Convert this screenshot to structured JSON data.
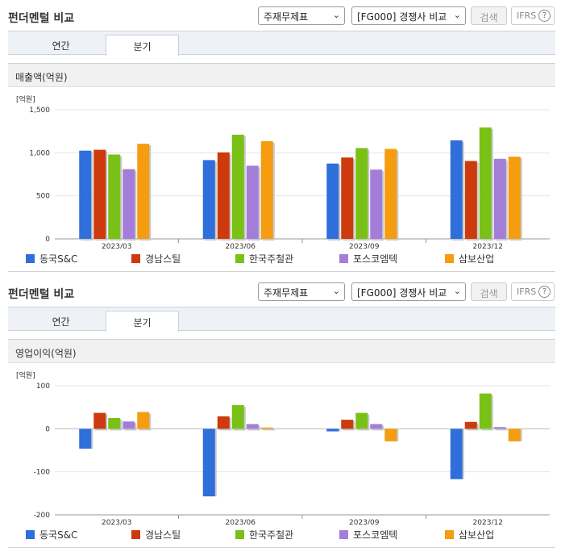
{
  "sections": [
    {
      "title": "펀더멘털 비교",
      "select1": "주재무제표",
      "select2": "[FG000] 경쟁사 비교",
      "search_label": "검색",
      "ifrs_label": "IFRS",
      "ifrs_help": "?",
      "tabs": [
        "연간",
        "분기"
      ],
      "active_tab": "분기",
      "metric_title": "매출액(억원)"
    },
    {
      "title": "펀더멘털 비교",
      "select1": "주재무제표",
      "select2": "[FG000] 경쟁사 비교",
      "search_label": "검색",
      "ifrs_label": "IFRS",
      "ifrs_help": "?",
      "tabs": [
        "연간",
        "분기"
      ],
      "active_tab": "분기",
      "metric_title": "영업이익(억원)"
    }
  ],
  "colors": {
    "동국S&C": "#2f6fdb",
    "경남스틸": "#cc3a0d",
    "한국주철관": "#79c117",
    "포스코엠텍": "#a37ed9",
    "삼보산업": "#f59c10"
  },
  "chart_data": [
    {
      "type": "bar",
      "unit_label": "[억원]",
      "categories": [
        "2023/03",
        "2023/06",
        "2023/09",
        "2023/12"
      ],
      "ylim": [
        0,
        1500
      ],
      "yticks": [
        "0",
        "500",
        "1,000",
        "1,500"
      ],
      "ytick_values": [
        0,
        500,
        1000,
        1500
      ],
      "grid": true,
      "legend_position": "bottom",
      "series": [
        {
          "name": "동국S&C",
          "values": [
            1025,
            915,
            875,
            1145
          ]
        },
        {
          "name": "경남스틸",
          "values": [
            1035,
            1005,
            945,
            905
          ]
        },
        {
          "name": "한국주철관",
          "values": [
            980,
            1210,
            1055,
            1295
          ]
        },
        {
          "name": "포스코엠텍",
          "values": [
            810,
            850,
            805,
            930
          ]
        },
        {
          "name": "삼보산업",
          "values": [
            1105,
            1135,
            1045,
            955
          ]
        }
      ]
    },
    {
      "type": "bar",
      "unit_label": "[억원]",
      "categories": [
        "2023/03",
        "2023/06",
        "2023/09",
        "2023/12"
      ],
      "ylim": [
        -200,
        100
      ],
      "yticks": [
        "-200",
        "-100",
        "0",
        "100"
      ],
      "ytick_values": [
        -200,
        -100,
        0,
        100
      ],
      "grid": true,
      "legend_position": "bottom",
      "series": [
        {
          "name": "동국S&C",
          "values": [
            -46,
            -157,
            -6,
            -117
          ]
        },
        {
          "name": "경남스틸",
          "values": [
            37,
            29,
            21,
            16
          ]
        },
        {
          "name": "한국주철관",
          "values": [
            25,
            55,
            37,
            82
          ]
        },
        {
          "name": "포스코엠텍",
          "values": [
            17,
            11,
            11,
            4
          ]
        },
        {
          "name": "삼보산업",
          "values": [
            39,
            3,
            -29,
            -29
          ]
        }
      ]
    }
  ]
}
